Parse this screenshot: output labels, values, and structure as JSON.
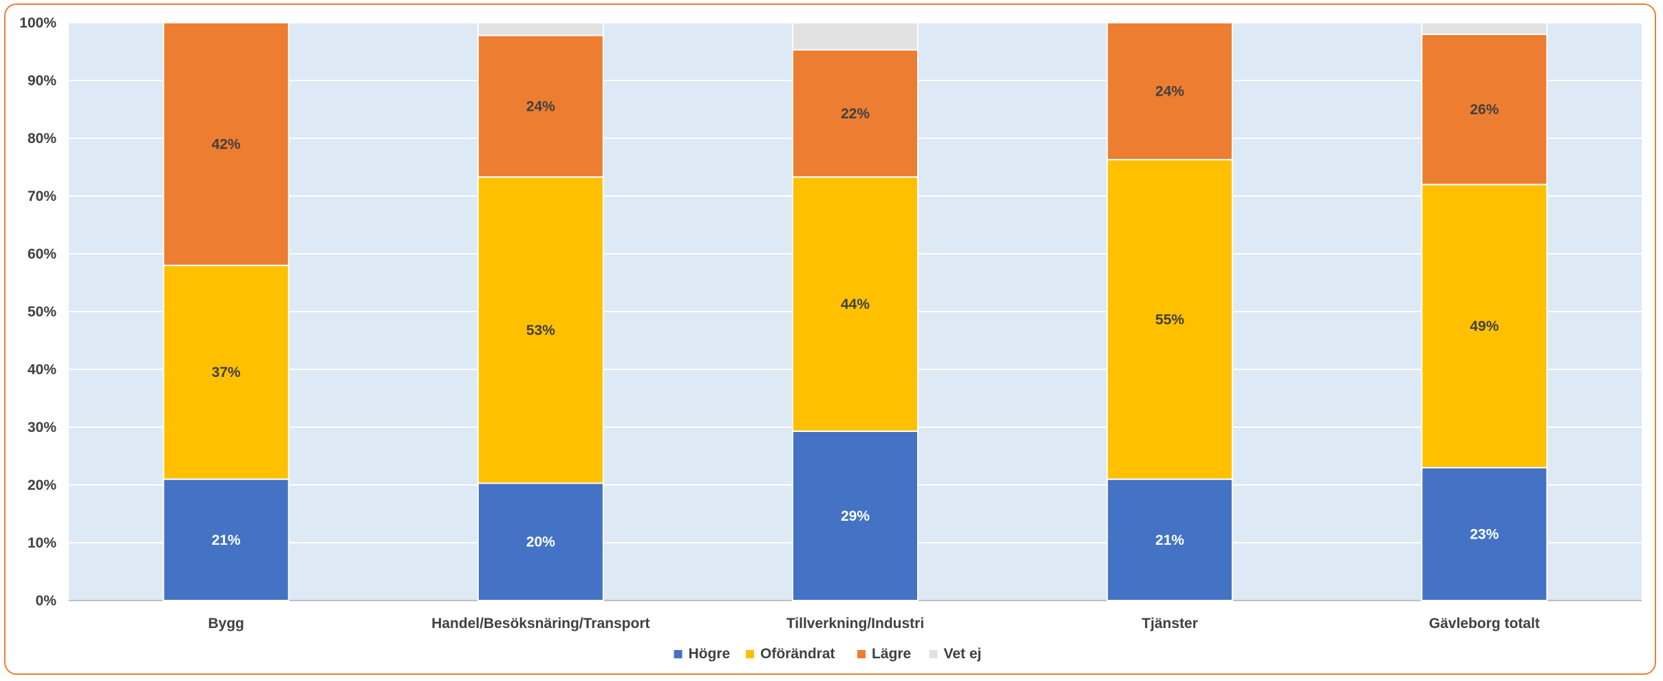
{
  "chart_data": {
    "type": "bar",
    "stacked": true,
    "title": "",
    "xlabel": "",
    "ylabel": "",
    "ylim": [
      0,
      100
    ],
    "ytick_format": "%",
    "grid": true,
    "legend_position": "bottom",
    "categories": [
      "Bygg",
      "Handel/Besöksnäring/Transport",
      "Tillverkning/Industri",
      "Tjänster",
      "Gävleborg totalt"
    ],
    "series": [
      {
        "name": "Högre",
        "color": "#4472c4",
        "label_color": "#ffffff",
        "values": [
          21,
          20.3,
          29.3,
          21,
          23
        ],
        "labels": [
          "21%",
          "20%",
          "29%",
          "21%",
          "23%"
        ]
      },
      {
        "name": "Oförändrat",
        "color": "#ffc000",
        "label_color": "#404040",
        "values": [
          37,
          53,
          44,
          55.3,
          49
        ],
        "labels": [
          "37%",
          "53%",
          "44%",
          "55%",
          "49%"
        ]
      },
      {
        "name": "Lägre",
        "color": "#ed7d31",
        "label_color": "#404040",
        "values": [
          42,
          24.5,
          22,
          23.7,
          26
        ],
        "labels": [
          "42%",
          "24%",
          "22%",
          "24%",
          "26%"
        ]
      },
      {
        "name": "Vet ej",
        "color": "#e2e2e2",
        "label_color": "#404040",
        "values": [
          0,
          2.2,
          4.7,
          0,
          2
        ],
        "labels": [
          "",
          "",
          "",
          "",
          ""
        ]
      }
    ],
    "yticks": [
      "0%",
      "10%",
      "20%",
      "30%",
      "40%",
      "50%",
      "60%",
      "70%",
      "80%",
      "90%",
      "100%"
    ]
  }
}
